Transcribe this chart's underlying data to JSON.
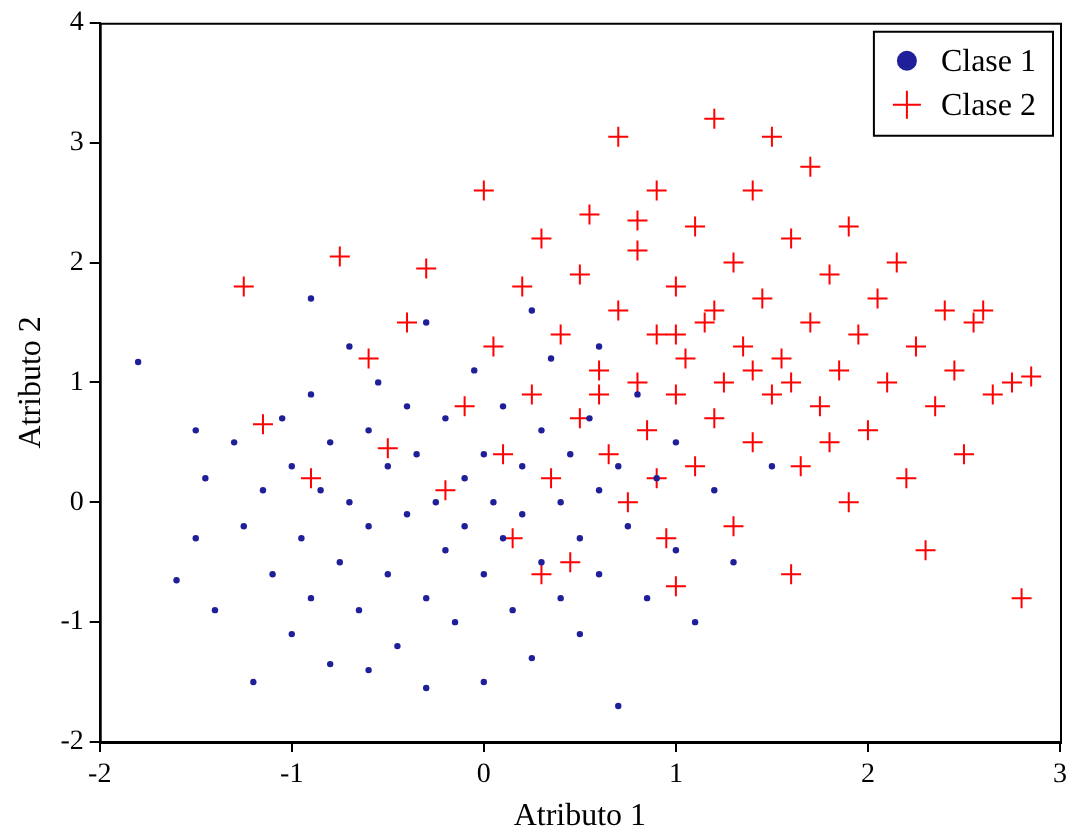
{
  "chart_data": {
    "type": "scatter",
    "xlabel": "Atributo 1",
    "ylabel": "Atributo 2",
    "xlim": [
      -2,
      3
    ],
    "ylim": [
      -2,
      4
    ],
    "xticks": [
      -2,
      -1,
      0,
      1,
      2,
      3
    ],
    "yticks": [
      -2,
      -1,
      0,
      1,
      2,
      3,
      4
    ],
    "grid": false,
    "legend": "top right",
    "series": [
      {
        "name": "Clase 1",
        "color": "#1f1f99",
        "marker": "circle",
        "x": [
          -1.8,
          -1.6,
          -1.5,
          -1.45,
          -1.4,
          -1.3,
          -1.25,
          -1.2,
          -1.15,
          -1.1,
          -1.05,
          -1.0,
          -1.0,
          -0.95,
          -0.9,
          -0.9,
          -0.85,
          -0.8,
          -0.8,
          -0.75,
          -0.7,
          -0.7,
          -0.65,
          -0.6,
          -0.6,
          -0.55,
          -0.5,
          -0.5,
          -0.45,
          -0.4,
          -0.4,
          -0.35,
          -0.3,
          -0.3,
          -0.25,
          -0.2,
          -0.2,
          -0.15,
          -0.1,
          -0.1,
          -0.05,
          0.0,
          0.0,
          0.0,
          0.05,
          0.1,
          0.1,
          0.15,
          0.2,
          0.2,
          0.25,
          0.3,
          0.3,
          0.35,
          0.4,
          0.4,
          0.45,
          0.5,
          0.5,
          0.55,
          0.6,
          0.6,
          0.7,
          0.7,
          0.75,
          0.8,
          0.85,
          0.9,
          1.0,
          1.0,
          1.1,
          1.2,
          1.3,
          1.5,
          -0.9,
          -0.3,
          0.25,
          -1.5,
          -0.6,
          0.6
        ],
        "values": [
          1.17,
          -0.65,
          -0.3,
          0.2,
          -0.9,
          0.5,
          -0.2,
          -1.5,
          0.1,
          -0.6,
          0.7,
          -1.1,
          0.3,
          -0.3,
          0.9,
          -0.8,
          0.1,
          -1.35,
          0.5,
          -0.5,
          1.3,
          0.0,
          -0.9,
          0.6,
          -0.2,
          1.0,
          -0.6,
          0.3,
          -1.2,
          0.8,
          -0.1,
          0.4,
          -0.8,
          1.5,
          0.0,
          -0.4,
          0.7,
          -1.0,
          0.2,
          -0.2,
          1.1,
          -0.6,
          0.4,
          -1.5,
          0.0,
          -0.3,
          0.8,
          -0.9,
          0.3,
          -0.1,
          -1.3,
          0.6,
          -0.5,
          1.2,
          0.0,
          -0.8,
          0.4,
          -0.3,
          -1.1,
          0.7,
          0.1,
          -0.6,
          -1.7,
          0.3,
          -0.2,
          0.9,
          -0.8,
          0.2,
          -0.4,
          0.5,
          -1.0,
          0.1,
          -0.5,
          0.3,
          1.7,
          -1.55,
          1.6,
          0.6,
          -1.4,
          1.3
        ]
      },
      {
        "name": "Clase 2",
        "color": "#ff0000",
        "marker": "cross",
        "x": [
          -1.25,
          -1.15,
          -0.9,
          -0.75,
          -0.6,
          -0.5,
          -0.4,
          -0.3,
          -0.2,
          -0.1,
          0.0,
          0.05,
          0.1,
          0.15,
          0.2,
          0.25,
          0.3,
          0.35,
          0.4,
          0.45,
          0.5,
          0.5,
          0.55,
          0.6,
          0.65,
          0.7,
          0.7,
          0.75,
          0.8,
          0.8,
          0.85,
          0.9,
          0.9,
          0.95,
          1.0,
          1.0,
          1.05,
          1.1,
          1.1,
          1.15,
          1.2,
          1.2,
          1.25,
          1.3,
          1.3,
          1.35,
          1.4,
          1.4,
          1.45,
          1.5,
          1.5,
          1.55,
          1.6,
          1.6,
          1.65,
          1.7,
          1.7,
          1.75,
          1.8,
          1.85,
          1.9,
          1.9,
          1.95,
          2.0,
          2.05,
          2.1,
          2.15,
          2.2,
          2.25,
          2.3,
          2.35,
          2.4,
          2.45,
          2.5,
          2.55,
          2.6,
          2.65,
          2.75,
          2.85,
          2.8,
          1.0,
          0.3,
          0.8,
          1.2,
          1.6,
          0.6,
          1.4,
          1.0,
          0.9,
          1.8
        ],
        "values": [
          1.8,
          0.65,
          0.2,
          2.05,
          1.2,
          0.45,
          1.5,
          1.95,
          0.1,
          0.8,
          2.6,
          1.3,
          0.4,
          -0.3,
          1.8,
          0.9,
          2.2,
          0.2,
          1.4,
          -0.5,
          0.7,
          1.9,
          2.4,
          1.1,
          0.4,
          3.05,
          1.6,
          0.0,
          2.1,
          1.0,
          0.6,
          1.4,
          2.6,
          -0.3,
          1.8,
          0.9,
          1.2,
          0.3,
          2.3,
          1.5,
          3.2,
          0.7,
          1.0,
          2.0,
          -0.2,
          1.3,
          0.5,
          2.6,
          1.7,
          3.05,
          0.9,
          1.2,
          -0.6,
          2.2,
          0.3,
          1.5,
          2.8,
          0.8,
          1.9,
          1.1,
          0.0,
          2.3,
          1.4,
          0.6,
          1.7,
          1.0,
          2.0,
          0.2,
          1.3,
          -0.4,
          0.8,
          1.6,
          1.1,
          0.4,
          1.5,
          1.6,
          0.9,
          1.0,
          1.05,
          -0.8,
          -0.7,
          -0.6,
          2.35,
          1.6,
          1.0,
          0.9,
          1.1,
          1.4,
          0.2,
          0.5
        ]
      }
    ]
  }
}
